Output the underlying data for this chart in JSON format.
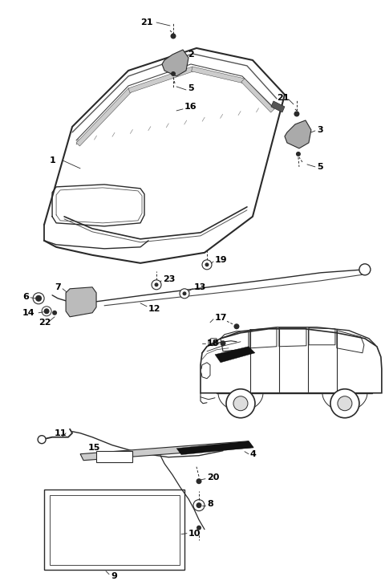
{
  "bg_color": "#ffffff",
  "line_color": "#2a2a2a",
  "fig_width": 4.8,
  "fig_height": 7.24,
  "dpi": 100
}
